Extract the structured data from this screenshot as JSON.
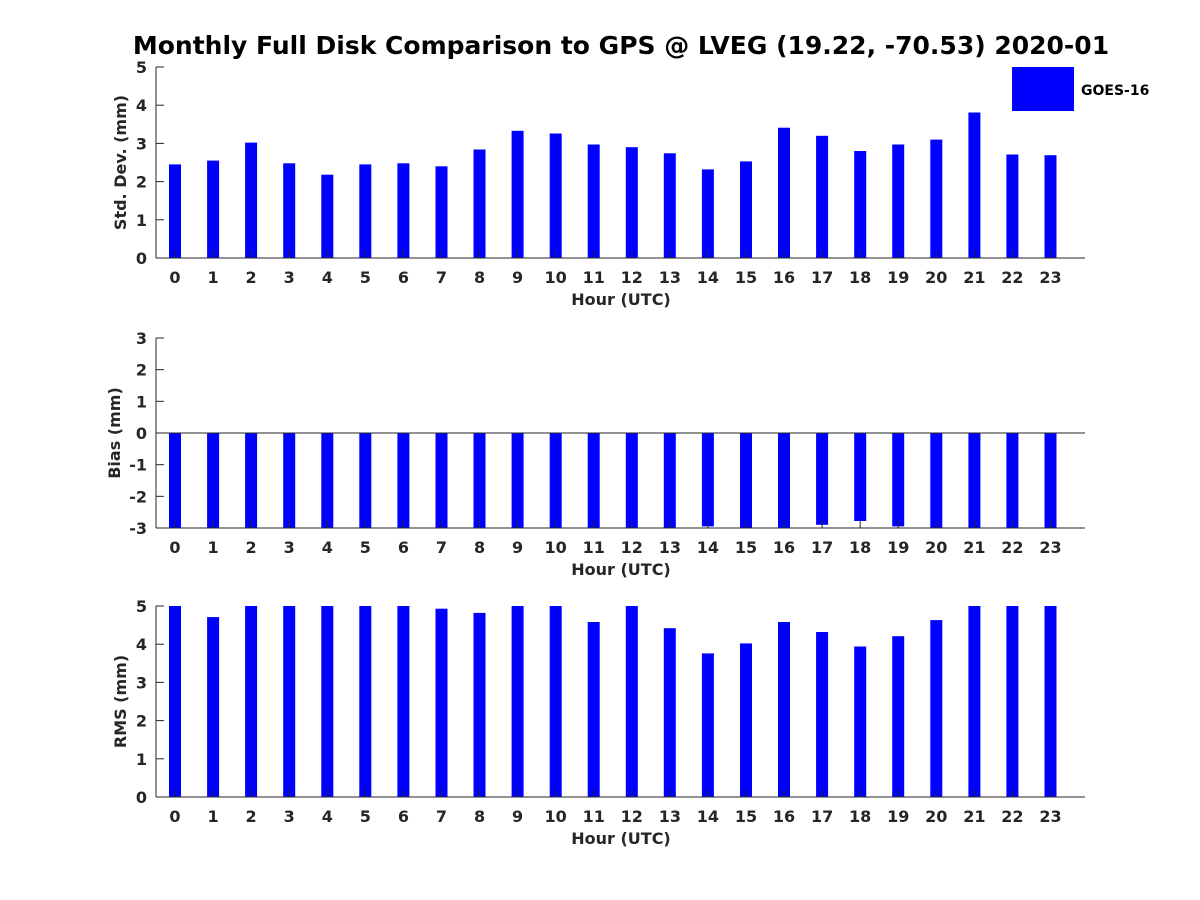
{
  "chart_data": [
    {
      "type": "bar",
      "title": "Monthly Full Disk Comparison to GPS @ LVEG (19.22, -70.53) 2020-01",
      "xlabel": "Hour (UTC)",
      "ylabel": "Std. Dev. (mm)",
      "ylim": [
        0,
        5
      ],
      "yticks": [
        "0",
        "1",
        "2",
        "3",
        "4",
        "5"
      ],
      "categories": [
        "0",
        "1",
        "2",
        "3",
        "4",
        "5",
        "6",
        "7",
        "8",
        "9",
        "10",
        "11",
        "12",
        "13",
        "14",
        "15",
        "16",
        "17",
        "18",
        "19",
        "20",
        "21",
        "22",
        "23"
      ],
      "series": [
        {
          "name": "GOES-16",
          "color": "#0000ff",
          "values": [
            2.45,
            2.55,
            3.02,
            2.48,
            2.18,
            2.45,
            2.48,
            2.4,
            2.84,
            3.33,
            3.26,
            2.97,
            2.9,
            2.74,
            2.32,
            2.53,
            3.41,
            3.2,
            2.8,
            2.97,
            3.1,
            3.81,
            2.71,
            2.69
          ]
        }
      ],
      "legend": "top-right",
      "grid": false
    },
    {
      "type": "bar",
      "xlabel": "Hour (UTC)",
      "ylabel": "Bias (mm)",
      "ylim": [
        -3,
        3
      ],
      "yticks": [
        "-3",
        "-2",
        "-1",
        "0",
        "1",
        "2",
        "3"
      ],
      "categories": [
        "0",
        "1",
        "2",
        "3",
        "4",
        "5",
        "6",
        "7",
        "8",
        "9",
        "10",
        "11",
        "12",
        "13",
        "14",
        "15",
        "16",
        "17",
        "18",
        "19",
        "20",
        "21",
        "22",
        "23"
      ],
      "series": [
        {
          "name": "GOES-16",
          "color": "#0000ff",
          "values": [
            -3,
            -3,
            -3,
            -3,
            -3,
            -3,
            -3,
            -3,
            -3,
            -3,
            -3,
            -3,
            -3,
            -3,
            -2.95,
            -3,
            -3,
            -2.9,
            -2.78,
            -2.95,
            -3,
            -3,
            -3,
            -3
          ]
        }
      ],
      "grid": false
    },
    {
      "type": "bar",
      "xlabel": "Hour (UTC)",
      "ylabel": "RMS (mm)",
      "ylim": [
        0,
        5
      ],
      "yticks": [
        "0",
        "1",
        "2",
        "3",
        "4",
        "5"
      ],
      "categories": [
        "0",
        "1",
        "2",
        "3",
        "4",
        "5",
        "6",
        "7",
        "8",
        "9",
        "10",
        "11",
        "12",
        "13",
        "14",
        "15",
        "16",
        "17",
        "18",
        "19",
        "20",
        "21",
        "22",
        "23"
      ],
      "series": [
        {
          "name": "GOES-16",
          "color": "#0000ff",
          "values": [
            5,
            4.71,
            5,
            5,
            5,
            5,
            5,
            4.93,
            4.82,
            5,
            5,
            4.58,
            5,
            4.42,
            3.76,
            4.02,
            4.58,
            4.32,
            3.94,
            4.21,
            4.63,
            5,
            5,
            5
          ]
        }
      ],
      "grid": false
    }
  ],
  "legend_label": "GOES-16"
}
